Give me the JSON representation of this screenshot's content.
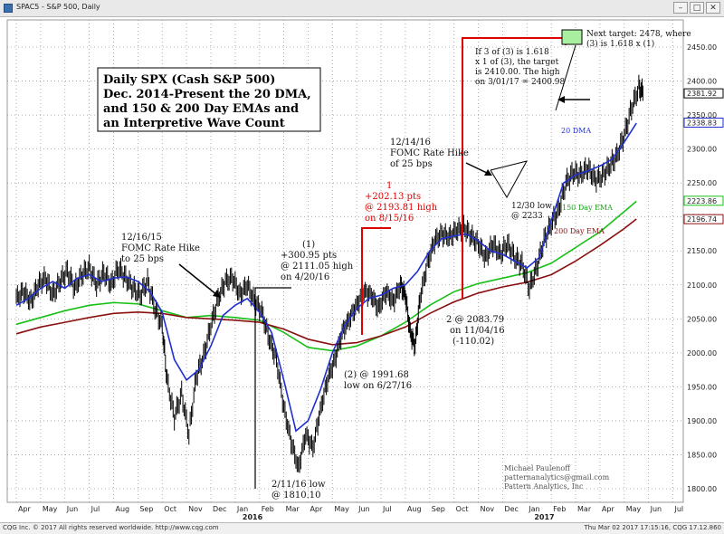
{
  "window": {
    "title": "SPAC5 - S&P 500, Daily"
  },
  "footer": {
    "left": "CQG Inc. © 2017 All rights reserved worldwide. http://www.cqg.com",
    "right": "Thu Mar 02 2017 17:15:16, CQG 17.12.860"
  },
  "chart_data": {
    "type": "line",
    "title": "Daily SPX (Cash S&P 500) Dec. 2014-Present the 20 DMA, and 150 & 200 Day EMAs and an Interpretive Wave Count",
    "title_lines": [
      "Daily SPX (Cash S&P 500)",
      "Dec. 2014-Present the 20 DMA,",
      "and 150 & 200 Day EMAs and",
      "an Interpretive Wave Count"
    ],
    "ylim": [
      1780,
      2490
    ],
    "y_ticks": [
      "2450.00",
      "2400.00",
      "2350.00",
      "2300.00",
      "2250.00",
      "2200.00",
      "2150.00",
      "2100.00",
      "2050.00",
      "2000.00",
      "1950.00",
      "1900.00",
      "1850.00",
      "1800.00"
    ],
    "x_ticks": [
      "Apr",
      "May",
      "Jun",
      "Jul",
      "Aug",
      "Sep",
      "Oct",
      "Nov",
      "Dec",
      "Jan",
      "Feb",
      "Mar",
      "Apr",
      "May",
      "Jun",
      "Jul",
      "Aug",
      "Sep",
      "Oct",
      "Nov",
      "Dec",
      "Jan",
      "Feb",
      "Mar",
      "Apr",
      "May",
      "Jun",
      "Jul"
    ],
    "year_labels": [
      "2016",
      "2017"
    ],
    "grid": true,
    "last_values": [
      {
        "label": "2381.92",
        "value": 2381.92,
        "color": "#000000"
      },
      {
        "label": "2338.83",
        "value": 2338.83,
        "color": "#1f2fd0"
      },
      {
        "label": "2223.86",
        "value": 2223.86,
        "color": "#18c018"
      },
      {
        "label": "2196.74",
        "value": 2196.74,
        "color": "#8a1010"
      }
    ],
    "series": [
      {
        "name": "20 DMA",
        "color": "#1f2fd0",
        "points": [
          [
            0.0,
            2070
          ],
          [
            0.5,
            2080
          ],
          [
            1.0,
            2095
          ],
          [
            1.5,
            2105
          ],
          [
            2.0,
            2095
          ],
          [
            2.5,
            2110
          ],
          [
            3.0,
            2115
          ],
          [
            3.5,
            2105
          ],
          [
            4.0,
            2110
          ],
          [
            4.5,
            2112
          ],
          [
            5.0,
            2105
          ],
          [
            5.5,
            2090
          ],
          [
            6.0,
            2060
          ],
          [
            6.5,
            1990
          ],
          [
            7.0,
            1960
          ],
          [
            7.5,
            1975
          ],
          [
            8.0,
            2010
          ],
          [
            8.5,
            2055
          ],
          [
            9.0,
            2070
          ],
          [
            9.5,
            2080
          ],
          [
            10.0,
            2060
          ],
          [
            10.5,
            2030
          ],
          [
            11.0,
            1960
          ],
          [
            11.5,
            1885
          ],
          [
            12.0,
            1900
          ],
          [
            12.5,
            1945
          ],
          [
            13.0,
            2000
          ],
          [
            13.5,
            2040
          ],
          [
            14.0,
            2065
          ],
          [
            14.5,
            2080
          ],
          [
            15.0,
            2085
          ],
          [
            15.5,
            2095
          ],
          [
            16.0,
            2100
          ],
          [
            16.5,
            2120
          ],
          [
            17.0,
            2150
          ],
          [
            17.5,
            2168
          ],
          [
            18.0,
            2172
          ],
          [
            18.5,
            2175
          ],
          [
            19.0,
            2165
          ],
          [
            19.5,
            2150
          ],
          [
            20.0,
            2145
          ],
          [
            20.5,
            2135
          ],
          [
            21.0,
            2125
          ],
          [
            21.5,
            2140
          ],
          [
            22.0,
            2195
          ],
          [
            22.5,
            2250
          ],
          [
            23.0,
            2262
          ],
          [
            23.5,
            2268
          ],
          [
            24.0,
            2275
          ],
          [
            24.5,
            2285
          ],
          [
            25.0,
            2310
          ],
          [
            25.5,
            2338
          ]
        ]
      },
      {
        "name": "150 Day EMA",
        "color": "#18c018",
        "points": [
          [
            0.0,
            2042
          ],
          [
            1.0,
            2052
          ],
          [
            2.0,
            2062
          ],
          [
            3.0,
            2070
          ],
          [
            4.0,
            2074
          ],
          [
            5.0,
            2072
          ],
          [
            6.0,
            2062
          ],
          [
            7.0,
            2052
          ],
          [
            8.0,
            2055
          ],
          [
            9.0,
            2052
          ],
          [
            10.0,
            2048
          ],
          [
            11.0,
            2030
          ],
          [
            12.0,
            2008
          ],
          [
            13.0,
            2003
          ],
          [
            14.0,
            2010
          ],
          [
            15.0,
            2025
          ],
          [
            16.0,
            2045
          ],
          [
            17.0,
            2070
          ],
          [
            18.0,
            2090
          ],
          [
            19.0,
            2102
          ],
          [
            20.0,
            2110
          ],
          [
            21.0,
            2118
          ],
          [
            22.0,
            2132
          ],
          [
            23.0,
            2155
          ],
          [
            24.0,
            2178
          ],
          [
            25.0,
            2208
          ],
          [
            25.5,
            2223
          ]
        ]
      },
      {
        "name": "200 Day EMA",
        "color": "#8a1010",
        "points": [
          [
            0.0,
            2028
          ],
          [
            1.0,
            2038
          ],
          [
            2.0,
            2045
          ],
          [
            3.0,
            2052
          ],
          [
            4.0,
            2058
          ],
          [
            5.0,
            2060
          ],
          [
            6.0,
            2058
          ],
          [
            7.0,
            2052
          ],
          [
            8.0,
            2050
          ],
          [
            9.0,
            2048
          ],
          [
            10.0,
            2045
          ],
          [
            11.0,
            2035
          ],
          [
            12.0,
            2020
          ],
          [
            13.0,
            2012
          ],
          [
            14.0,
            2015
          ],
          [
            15.0,
            2025
          ],
          [
            16.0,
            2038
          ],
          [
            17.0,
            2058
          ],
          [
            18.0,
            2075
          ],
          [
            19.0,
            2088
          ],
          [
            20.0,
            2097
          ],
          [
            21.0,
            2104
          ],
          [
            22.0,
            2115
          ],
          [
            23.0,
            2135
          ],
          [
            24.0,
            2158
          ],
          [
            25.0,
            2183
          ],
          [
            25.5,
            2197
          ]
        ]
      },
      {
        "name": "SPX",
        "color": "#000000",
        "points": [
          [
            0.0,
            2080
          ],
          [
            0.3,
            2090
          ],
          [
            0.6,
            2075
          ],
          [
            0.9,
            2100
          ],
          [
            1.2,
            2110
          ],
          [
            1.5,
            2085
          ],
          [
            1.8,
            2105
          ],
          [
            2.1,
            2120
          ],
          [
            2.4,
            2095
          ],
          [
            2.7,
            2115
          ],
          [
            3.0,
            2125
          ],
          [
            3.3,
            2100
          ],
          [
            3.6,
            2118
          ],
          [
            3.9,
            2100
          ],
          [
            4.2,
            2125
          ],
          [
            4.5,
            2110
          ],
          [
            4.8,
            2095
          ],
          [
            5.1,
            2085
          ],
          [
            5.4,
            2105
          ],
          [
            5.7,
            2065
          ],
          [
            6.0,
            2040
          ],
          [
            6.2,
            1960
          ],
          [
            6.5,
            1905
          ],
          [
            6.8,
            1940
          ],
          [
            7.1,
            1880
          ],
          [
            7.4,
            1965
          ],
          [
            7.7,
            1995
          ],
          [
            8.0,
            2040
          ],
          [
            8.3,
            2080
          ],
          [
            8.6,
            2105
          ],
          [
            8.9,
            2110
          ],
          [
            9.2,
            2085
          ],
          [
            9.5,
            2100
          ],
          [
            9.8,
            2075
          ],
          [
            10.1,
            2060
          ],
          [
            10.4,
            2020
          ],
          [
            10.7,
            1990
          ],
          [
            11.0,
            1920
          ],
          [
            11.3,
            1870
          ],
          [
            11.6,
            1830
          ],
          [
            11.9,
            1880
          ],
          [
            12.2,
            1860
          ],
          [
            12.5,
            1915
          ],
          [
            12.8,
            1960
          ],
          [
            13.1,
            1990
          ],
          [
            13.4,
            2030
          ],
          [
            13.7,
            2050
          ],
          [
            14.0,
            2070
          ],
          [
            14.3,
            2090
          ],
          [
            14.6,
            2085
          ],
          [
            14.9,
            2065
          ],
          [
            15.2,
            2090
          ],
          [
            15.5,
            2075
          ],
          [
            15.8,
            2100
          ],
          [
            16.0,
            2085
          ],
          [
            16.2,
            2030
          ],
          [
            16.4,
            2010
          ],
          [
            16.6,
            2080
          ],
          [
            16.9,
            2130
          ],
          [
            17.2,
            2165
          ],
          [
            17.5,
            2175
          ],
          [
            17.8,
            2170
          ],
          [
            18.1,
            2180
          ],
          [
            18.4,
            2185
          ],
          [
            18.7,
            2172
          ],
          [
            19.0,
            2160
          ],
          [
            19.3,
            2140
          ],
          [
            19.6,
            2160
          ],
          [
            19.9,
            2145
          ],
          [
            20.2,
            2160
          ],
          [
            20.5,
            2140
          ],
          [
            20.8,
            2130
          ],
          [
            21.1,
            2095
          ],
          [
            21.4,
            2125
          ],
          [
            21.7,
            2165
          ],
          [
            22.0,
            2190
          ],
          [
            22.3,
            2210
          ],
          [
            22.6,
            2250
          ],
          [
            22.9,
            2265
          ],
          [
            23.2,
            2262
          ],
          [
            23.5,
            2272
          ],
          [
            23.8,
            2255
          ],
          [
            24.1,
            2260
          ],
          [
            24.4,
            2275
          ],
          [
            24.7,
            2290
          ],
          [
            25.0,
            2320
          ],
          [
            25.3,
            2360
          ],
          [
            25.6,
            2390
          ],
          [
            25.8,
            2382
          ]
        ]
      }
    ]
  },
  "annotations": {
    "target_box_label_1": "Next target: 2478, where",
    "target_box_label_2": "(3) is 1.618 x (1)",
    "fib_note": [
      "If 3 of (3) is 1.618",
      "x 1 of (3), the target",
      "is 2410.00. The high",
      "on 3/01/17 = 2400.98"
    ],
    "fomc_2016": [
      "12/14/16",
      "FOMC Rate Hike",
      "of 25 bps"
    ],
    "wave_1": [
      "1",
      "+202.13 pts",
      "@ 2193.81 high",
      "on 8/15/16"
    ],
    "low_1230": [
      "12/30 low",
      "@ 2233"
    ],
    "fomc_2015": [
      "12/16/15",
      "FOMC Rate Hike",
      "to 25 bps"
    ],
    "wave_paren_1": [
      "(1)",
      "+300.95 pts",
      "@ 2111.05 high",
      "on 4/20/16"
    ],
    "wave_2": [
      "2 @ 2083.79",
      "on 11/04/16",
      "(-110.02)"
    ],
    "wave_paren_2": [
      "(2) @ 1991.68",
      "low on 6/27/16"
    ],
    "low_0211": [
      "2/11/16 low",
      "@ 1810.10"
    ],
    "ema_label_150": "150 Day EMA",
    "ema_label_200": "200 Day EMA",
    "dma_label_20": "20 DMA",
    "signature": [
      "Michael Paulenoff",
      "patternanalytics@gmail.com",
      "Pattern Analytics, Inc"
    ]
  }
}
